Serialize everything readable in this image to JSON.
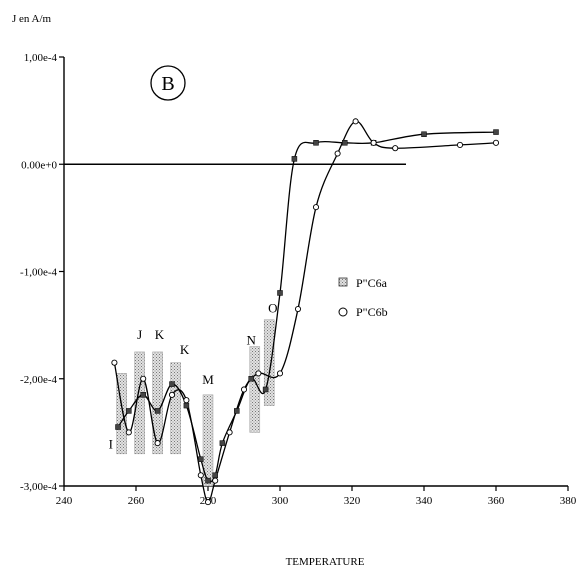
{
  "chart_data": {
    "type": "scatter",
    "panel_label": "B",
    "ylabel": "J en A/m",
    "xlabel": "TEMPERATURE",
    "xlim": [
      240,
      380
    ],
    "ylim": [
      -0.0003,
      0.0001
    ],
    "x_ticks": [
      240,
      260,
      280,
      300,
      320,
      340,
      360,
      380
    ],
    "y_ticks": [
      {
        "value": 0.0001,
        "label": "1,00e-4"
      },
      {
        "value": 0,
        "label": "0.00e+0"
      },
      {
        "value": -0.0001,
        "label": "-1,00e-4"
      },
      {
        "value": -0.0002,
        "label": "-2,00e-4"
      },
      {
        "value": -0.0003,
        "label": "-3,00e-4"
      }
    ],
    "reference_line": {
      "y": 0,
      "x_range": [
        240,
        335
      ]
    },
    "series": [
      {
        "name": "P\"C6a",
        "marker": "square",
        "x": [
          255,
          258,
          262,
          266,
          270,
          274,
          278,
          280,
          282,
          284,
          288,
          292,
          296,
          300,
          304,
          310,
          318,
          326,
          340,
          360
        ],
        "y": [
          -0.000245,
          -0.00023,
          -0.000215,
          -0.00023,
          -0.000205,
          -0.000225,
          -0.000275,
          -0.000295,
          -0.00029,
          -0.00026,
          -0.00023,
          -0.0002,
          -0.00021,
          -0.00012,
          5e-06,
          2e-05,
          2e-05,
          2e-05,
          2.8e-05,
          3e-05
        ]
      },
      {
        "name": "P\"C6b",
        "marker": "circle",
        "x": [
          254,
          258,
          262,
          266,
          270,
          274,
          278,
          280,
          282,
          286,
          290,
          294,
          300,
          305,
          310,
          316,
          321,
          326,
          332,
          350,
          360
        ],
        "y": [
          -0.000185,
          -0.00025,
          -0.0002,
          -0.00026,
          -0.000215,
          -0.00022,
          -0.00029,
          -0.000315,
          -0.000295,
          -0.00025,
          -0.00021,
          -0.000195,
          -0.000195,
          -0.000135,
          -4e-05,
          1e-05,
          4e-05,
          2e-05,
          1.5e-05,
          1.8e-05,
          2e-05
        ]
      }
    ],
    "bars": [
      {
        "x": 256,
        "y_top": -0.000195,
        "y_bottom": -0.00027
      },
      {
        "x": 261,
        "y_top": -0.000175,
        "y_bottom": -0.00027
      },
      {
        "x": 266,
        "y_top": -0.000175,
        "y_bottom": -0.00027
      },
      {
        "x": 271,
        "y_top": -0.000185,
        "y_bottom": -0.00027
      },
      {
        "x": 280,
        "y_top": -0.000215,
        "y_bottom": -0.0003
      },
      {
        "x": 293,
        "y_top": -0.00017,
        "y_bottom": -0.00025
      },
      {
        "x": 297,
        "y_top": -0.000145,
        "y_bottom": -0.000225
      }
    ],
    "annotations": [
      {
        "text": "I",
        "x": 253,
        "y": -0.000265
      },
      {
        "text": "J",
        "x": 261,
        "y": -0.000163
      },
      {
        "text": "K",
        "x": 266.5,
        "y": -0.000163
      },
      {
        "text": "K",
        "x": 273.5,
        "y": -0.000177
      },
      {
        "text": "M",
        "x": 280,
        "y": -0.000205
      },
      {
        "text": "N",
        "x": 292,
        "y": -0.000168
      },
      {
        "text": "O",
        "x": 298,
        "y": -0.000138
      }
    ],
    "legend": {
      "placement": "right",
      "entries": [
        {
          "marker": "square",
          "label": "P\"C6a"
        },
        {
          "marker": "circle",
          "label": "P\"C6b"
        }
      ]
    },
    "grid": false
  }
}
